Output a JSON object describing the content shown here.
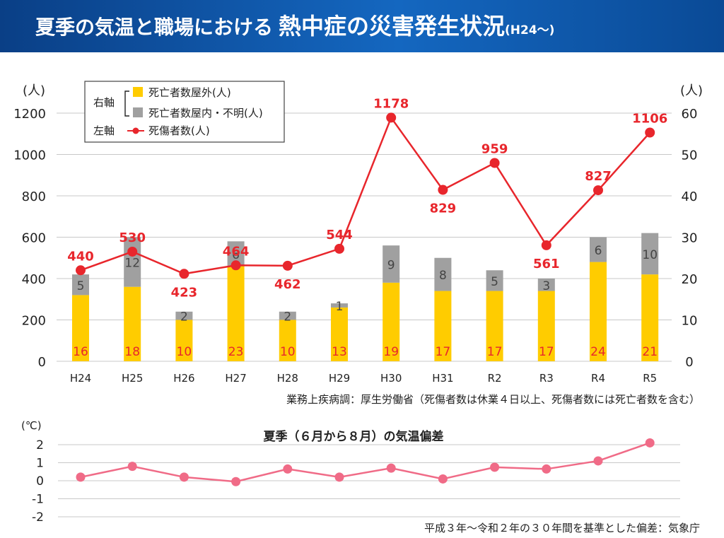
{
  "header": {
    "title_part1": "夏季の気温と職場における",
    "title_part2": "熱中症の災害発生状況",
    "title_part3": "(H24〜)"
  },
  "colors": {
    "outdoor": "#ffcc00",
    "indoor": "#a0a0a0",
    "casualties": "#e8262c",
    "temperature": "#f06b87",
    "header": "#0d4f9e"
  },
  "chart_data": [
    {
      "type": "bar",
      "categories": [
        "H24",
        "H25",
        "H26",
        "H27",
        "H28",
        "H29",
        "H30",
        "H31",
        "R2",
        "R3",
        "R4",
        "R5"
      ],
      "left_axis": {
        "unit": "(人)",
        "ylim": [
          0,
          1200
        ],
        "ticks": [
          "1200",
          "1000",
          "800",
          "600",
          "400",
          "200",
          "0"
        ]
      },
      "right_axis": {
        "unit": "(人)",
        "ylim": [
          0,
          60
        ],
        "ticks": [
          "60",
          "50",
          "40",
          "30",
          "20",
          "10",
          "0"
        ]
      },
      "legend": {
        "right_label": "右軸",
        "left_label": "左軸",
        "items": [
          "死亡者数屋外(人)",
          "死亡者数屋内・不明(人)",
          "死傷者数(人)"
        ]
      },
      "series": [
        {
          "name": "死亡者数屋外(人)",
          "type": "bar",
          "axis": "right",
          "values": [
            16,
            18,
            10,
            23,
            10,
            13,
            19,
            17,
            17,
            17,
            24,
            21
          ],
          "labels": [
            "16",
            "18",
            "10",
            "23",
            "10",
            "13",
            "19",
            "17",
            "17",
            "17",
            "24",
            "21"
          ]
        },
        {
          "name": "死亡者数屋内・不明(人)",
          "type": "bar",
          "axis": "right",
          "values": [
            5,
            12,
            2,
            6,
            2,
            1,
            9,
            8,
            5,
            3,
            6,
            10
          ],
          "labels": [
            "5",
            "12",
            "2",
            "6",
            "2",
            "1",
            "9",
            "8",
            "5",
            "3",
            "6",
            "10"
          ]
        },
        {
          "name": "死傷者数(人)",
          "type": "line",
          "axis": "left",
          "values": [
            440,
            530,
            423,
            464,
            462,
            544,
            1178,
            829,
            959,
            561,
            827,
            1106
          ],
          "labels": [
            "440",
            "530",
            "423",
            "464",
            "462",
            "544",
            "1178",
            "829",
            "959",
            "561",
            "827",
            "1106"
          ]
        }
      ],
      "source": "業務上疾病調：厚生労働省（死傷者数は休業４日以上、死傷者数には死亡者数を含む）"
    },
    {
      "type": "line",
      "title": "夏季（６月から８月）の気温偏差",
      "unit": "(℃)",
      "ylim": [
        -2,
        2
      ],
      "ticks": [
        "2",
        "1",
        "0",
        "-1",
        "-2"
      ],
      "values": [
        0.2,
        0.8,
        0.2,
        -0.05,
        0.65,
        0.2,
        0.7,
        0.1,
        0.75,
        0.65,
        1.1,
        2.1
      ],
      "source": "平成３年〜令和２年の３０年間を基準とした偏差：気象庁"
    }
  ]
}
